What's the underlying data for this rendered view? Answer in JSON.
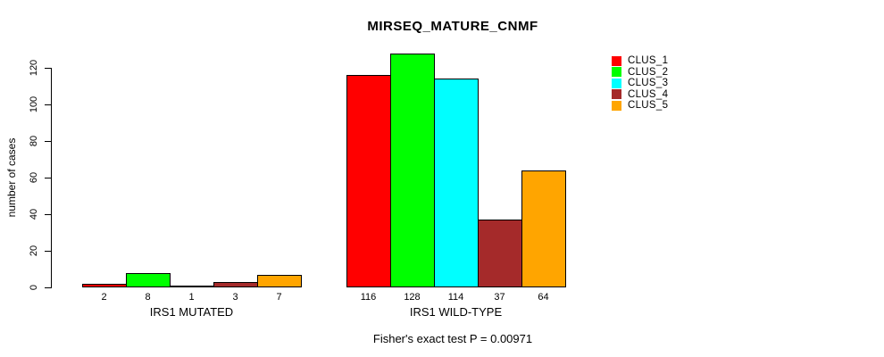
{
  "title": "MIRSEQ_MATURE_CNMF",
  "caption": "Fisher's exact test P = 0.00971",
  "chart_data": {
    "type": "bar",
    "title": "MIRSEQ_MATURE_CNMF",
    "xlabel": "",
    "ylabel": "number of cases",
    "ylim": [
      0,
      120
    ],
    "yticks": [
      0,
      20,
      40,
      60,
      80,
      100,
      120
    ],
    "grid": false,
    "legend_position": "top-right",
    "bar_value_labels_shown": true,
    "categories": [
      "IRS1 MUTATED",
      "IRS1 WILD-TYPE"
    ],
    "series": [
      {
        "name": "CLUS_1",
        "color": "#FF0000",
        "values": [
          2,
          116
        ]
      },
      {
        "name": "CLUS_2",
        "color": "#00FF00",
        "values": [
          8,
          128
        ]
      },
      {
        "name": "CLUS_3",
        "color": "#00FFFF",
        "values": [
          1,
          114
        ]
      },
      {
        "name": "CLUS_4",
        "color": "#A52A2A",
        "values": [
          3,
          37
        ]
      },
      {
        "name": "CLUS_5",
        "color": "#FFA500",
        "values": [
          7,
          64
        ]
      }
    ],
    "annotation": "Fisher's exact test P = 0.00971"
  }
}
